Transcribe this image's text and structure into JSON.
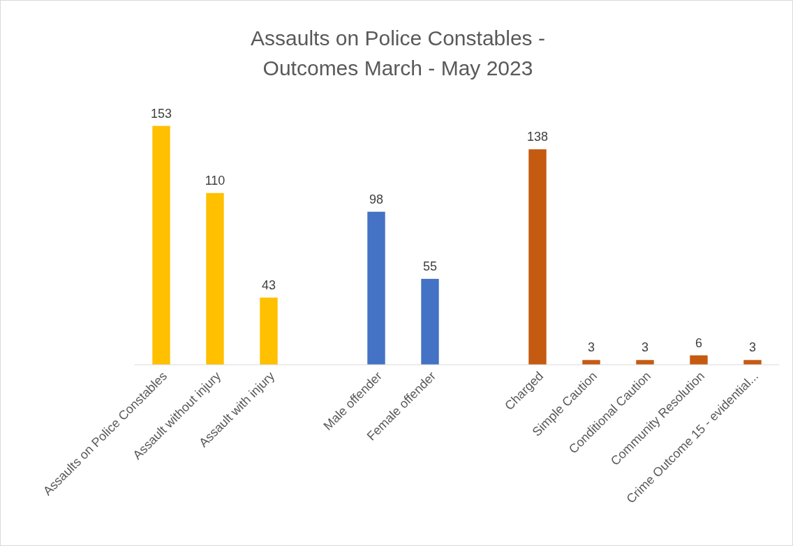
{
  "chart_data": {
    "type": "bar",
    "title": "Assaults on Police Constables - Outcomes March - May 2023",
    "categories": [
      "Assaults on Police Constables",
      "Assault without injury",
      "Assault with injury",
      null,
      "Male offender",
      "Female offender",
      null,
      "Charged",
      "Simple Caution",
      "Conditional Caution",
      "Community Resolution",
      "Crime Outcome 15 - evidential..."
    ],
    "values": [
      153,
      110,
      43,
      null,
      98,
      55,
      null,
      138,
      3,
      3,
      6,
      3
    ],
    "colors": [
      "#ffc000",
      "#ffc000",
      "#ffc000",
      null,
      "#4472c4",
      "#4472c4",
      null,
      "#c55a11",
      "#c55a11",
      "#c55a11",
      "#c55a11",
      "#c55a11"
    ],
    "data_labels": true
  }
}
